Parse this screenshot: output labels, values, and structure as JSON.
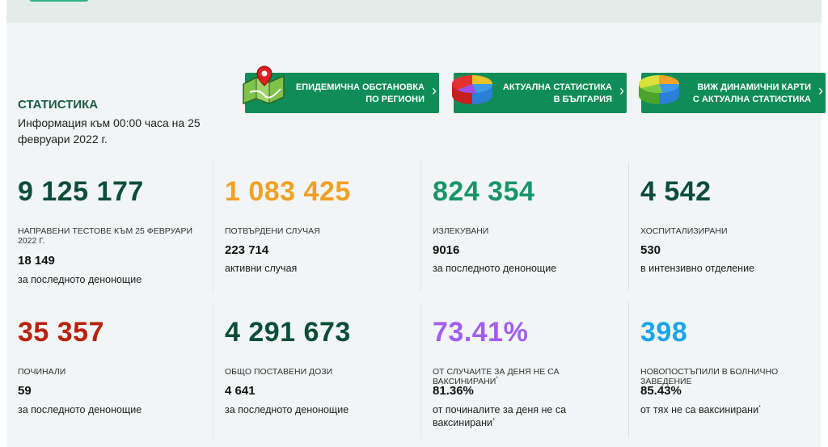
{
  "header": {
    "title": "СТАТИСТИКА",
    "info": "Информация към 00:00 часа на 25 февруари 2022 г."
  },
  "nav": [
    {
      "line1": "ЕПИДЕМИЧНА ОБСТАНОВКА",
      "line2": "ПО РЕГИОНИ",
      "icon": "map-pin-icon"
    },
    {
      "line1": "АКТУАЛНА СТАТИСТИКА",
      "line2": "В БЪЛГАРИЯ",
      "icon": "pie-chart-icon"
    },
    {
      "line1": "ВИЖ ДИНАМИЧНИ КАРТИ",
      "line2": "С АКТУАЛНА СТАТИСТИКА",
      "icon": "pie-chart-icon"
    }
  ],
  "stats": {
    "tests": {
      "value": "9 125 177",
      "caption": "НАПРАВЕНИ ТЕСТОВЕ КЪМ 25 ФЕВРУАРИ 2022 Г.",
      "sub_value": "18 149",
      "sub_caption": "за последното денонощие",
      "color": "#0b4d38"
    },
    "confirmed": {
      "value": "1 083 425",
      "caption": "ПОТВЪРДЕНИ СЛУЧАЯ",
      "sub_value": "223 714",
      "sub_caption": "активни случая",
      "color": "#f0a024"
    },
    "recovered": {
      "value": "824 354",
      "caption": "ИЗЛЕКУВАНИ",
      "sub_value": "9016",
      "sub_caption": "за последното денонощие",
      "color": "#17946a"
    },
    "hospitalized": {
      "value": "4 542",
      "caption": "ХОСПИТАЛИЗИРАНИ",
      "sub_value": "530",
      "sub_caption": "в интензивно отделение",
      "color": "#0b4d38"
    },
    "deaths": {
      "value": "35 357",
      "caption": "ПОЧИНАЛИ",
      "sub_value": "59",
      "sub_caption": "за последното денонощие",
      "color": "#b9210f"
    },
    "vaccines": {
      "value": "4 291 673",
      "caption": "ОБЩО ПОСТАВЕНИ ДОЗИ",
      "sub_value": "4 641",
      "sub_caption": "за последното денонощие",
      "color": "#0b4d38"
    },
    "unvaccinated_cases": {
      "value": "73.41%",
      "caption": "ОТ СЛУЧАИТЕ ЗА ДЕНЯ НЕ СА ВАКСИНИРАНИ",
      "sub_value": "81.36%",
      "sub_caption": "от починалите за деня не са ваксинирани",
      "color": "#a25ef0"
    },
    "new_admissions": {
      "value": "398",
      "caption": "НОВОПОСТЪПИЛИ В БОЛНИЧНО ЗАВЕДЕНИЕ",
      "sub_value": "85.43%",
      "sub_caption": "от тях не са ваксинирани",
      "color": "#1aa4ea"
    }
  },
  "footnote_mark": "*"
}
